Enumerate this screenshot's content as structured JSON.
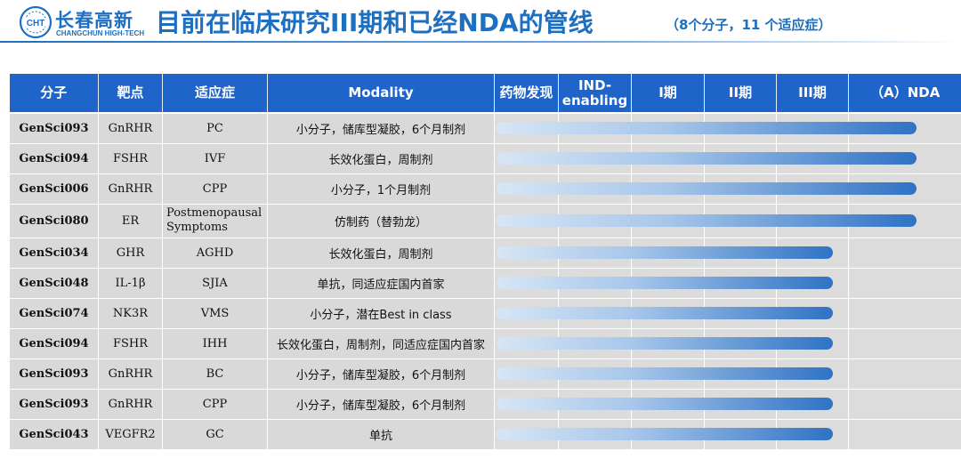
{
  "header": {
    "logo_mark": "CHT",
    "logo_cn": "长春高新",
    "logo_en": "CHANGCHUN HIGH-TECH",
    "title": "目前在临床研究III期和已经NDA的管线",
    "subtitle": "（8个分子，11 个适应症）"
  },
  "table": {
    "headers": {
      "molecule": "分子",
      "target": "靶点",
      "indication": "适应症",
      "modality": "Modality",
      "discovery": "药物发现",
      "ind_line1": "IND-",
      "ind_line2": "enabling",
      "phase1": "I期",
      "phase2": "II期",
      "phase3": "III期",
      "nda": "（A）NDA"
    },
    "stages": [
      "药物发现",
      "IND-enabling",
      "I期",
      "II期",
      "III期",
      "（A）NDA"
    ],
    "rows": [
      {
        "molecule": "GenSci093",
        "target": "GnRHR",
        "indication": "PC",
        "modality": "小分子，储库型凝胶，6个月制剂",
        "stage": "（A）NDA"
      },
      {
        "molecule": "GenSci094",
        "target": "FSHR",
        "indication": "IVF",
        "modality": "长效化蛋白，周制剂",
        "stage": "（A）NDA"
      },
      {
        "molecule": "GenSci006",
        "target": "GnRHR",
        "indication": "CPP",
        "modality": "小分子，1个月制剂",
        "stage": "（A）NDA"
      },
      {
        "molecule": "GenSci080",
        "target": "ER",
        "indication": "Postmenopausal Symptoms",
        "modality": "仿制药（替勃龙）",
        "stage": "（A）NDA"
      },
      {
        "molecule": "GenSci034",
        "target": "GHR",
        "indication": "AGHD",
        "modality": "长效化蛋白，周制剂",
        "stage": "III期"
      },
      {
        "molecule": "GenSci048",
        "target": "IL-1β",
        "indication": "SJIA",
        "modality": "单抗，同适应症国内首家",
        "stage": "III期"
      },
      {
        "molecule": "GenSci074",
        "target": "NK3R",
        "indication": "VMS",
        "modality": "小分子，潜在Best in class",
        "stage": "III期"
      },
      {
        "molecule": "GenSci094",
        "target": "FSHR",
        "indication": "IHH",
        "modality": "长效化蛋白，周制剂，同适应症国内首家",
        "stage": "III期"
      },
      {
        "molecule": "GenSci093",
        "target": "GnRHR",
        "indication": "BC",
        "modality": "小分子，储库型凝胶，6个月制剂",
        "stage": "III期"
      },
      {
        "molecule": "GenSci093",
        "target": "GnRHR",
        "indication": "CPP",
        "modality": "小分子，储库型凝胶，6个月制剂",
        "stage": "III期"
      },
      {
        "molecule": "GenSci043",
        "target": "VEGFR2",
        "indication": "GC",
        "modality": "单抗",
        "stage": "III期"
      }
    ]
  },
  "colors": {
    "brand_blue": "#1f6fc0",
    "header_blue": "#1f64c8",
    "row_gray": "#d9d9d9",
    "bar_start": "#d7e6f5",
    "bar_end": "#2f72c4"
  }
}
